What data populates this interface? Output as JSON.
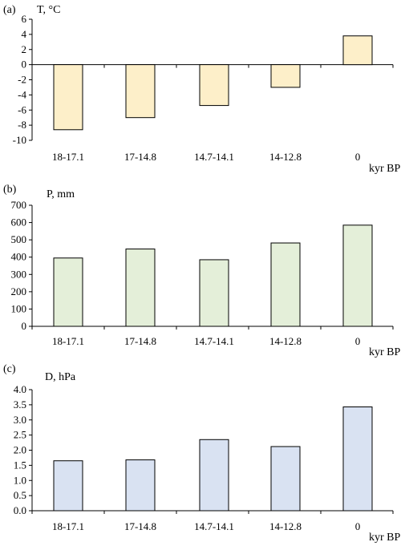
{
  "chart_data": [
    {
      "type": "bar",
      "panel_label": "(a)",
      "ylabel": "T, °C",
      "xlabel": "kyr BP",
      "categories": [
        "18-17.1",
        "17-14.8",
        "14.7-14.1",
        "14-12.8",
        "0"
      ],
      "values": [
        -8.6,
        -7.0,
        -5.4,
        -3.0,
        3.8
      ],
      "ylim": [
        -10,
        6
      ],
      "yticks": [
        "6",
        "4",
        "2",
        "0",
        "-2",
        "-4",
        "-6",
        "-8",
        "-10"
      ],
      "bar_color": "#fdefc9",
      "grid": false
    },
    {
      "type": "bar",
      "panel_label": "(b)",
      "ylabel": "P, mm",
      "xlabel": "kyr BP",
      "categories": [
        "18-17.1",
        "17-14.8",
        "14.7-14.1",
        "14-12.8",
        "0"
      ],
      "values": [
        395,
        447,
        385,
        482,
        585
      ],
      "ylim": [
        0,
        700
      ],
      "yticks": [
        "700",
        "600",
        "500",
        "400",
        "300",
        "200",
        "100",
        "0"
      ],
      "bar_color": "#e4efd9",
      "grid": false
    },
    {
      "type": "bar",
      "panel_label": "(c)",
      "ylabel": "D, hPa",
      "xlabel": "kyr BP",
      "categories": [
        "18-17.1",
        "17-14.8",
        "14.7-14.1",
        "14-12.8",
        "0"
      ],
      "values": [
        1.65,
        1.68,
        2.35,
        2.12,
        3.43
      ],
      "ylim": [
        0,
        4
      ],
      "yticks": [
        "4.0",
        "3.5",
        "3.0",
        "2.5",
        "2.0",
        "1.5",
        "1.0",
        "0.5",
        "0.0"
      ],
      "bar_color": "#d9e2f2",
      "grid": false
    }
  ]
}
